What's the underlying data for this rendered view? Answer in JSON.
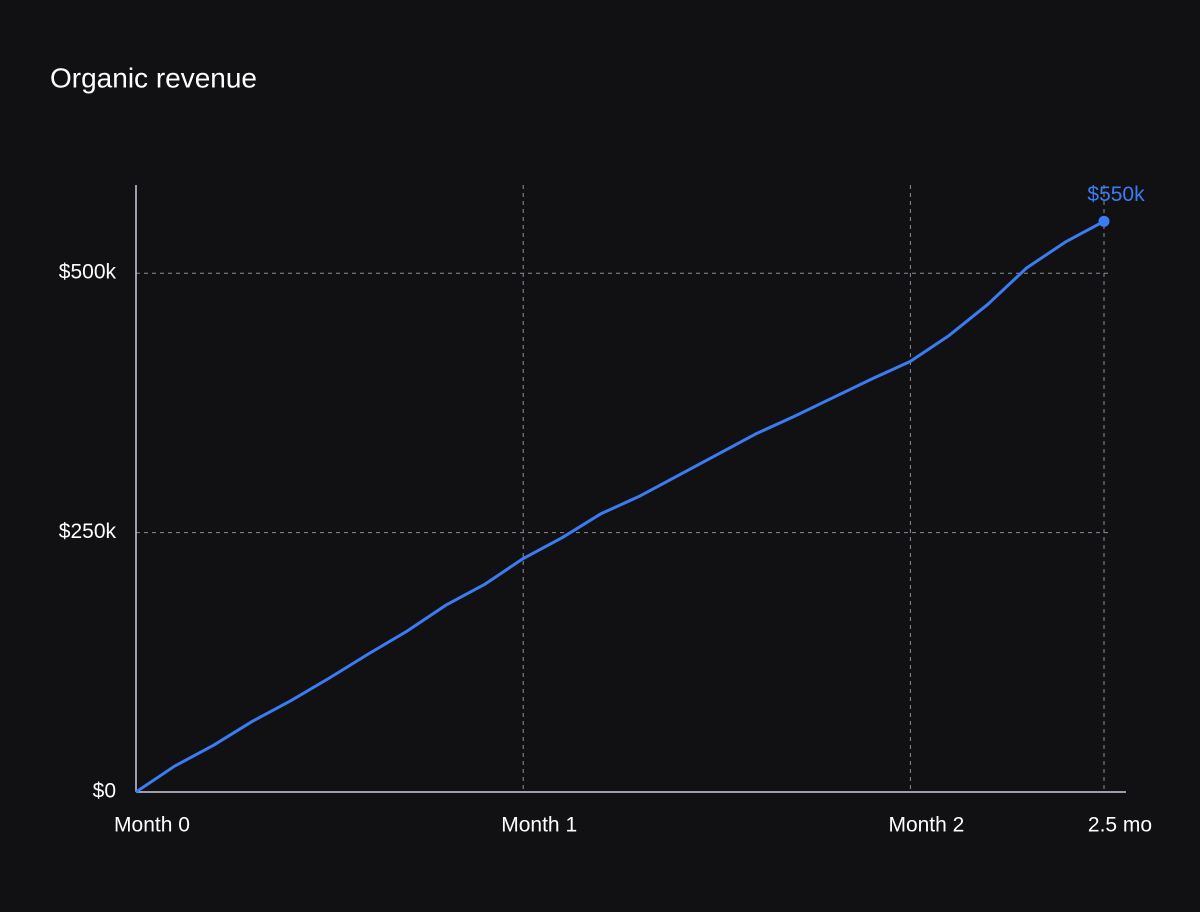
{
  "chart_data": {
    "type": "line",
    "title": "Organic revenue",
    "x": [
      0,
      0.1,
      0.2,
      0.3,
      0.4,
      0.5,
      0.6,
      0.7,
      0.8,
      0.9,
      1.0,
      1.1,
      1.2,
      1.3,
      1.4,
      1.5,
      1.6,
      1.7,
      1.8,
      1.9,
      2.0,
      2.1,
      2.2,
      2.3,
      2.4,
      2.5
    ],
    "series": [
      {
        "name": "Organic revenue",
        "color": "#3b7cf2",
        "values": [
          0,
          25000,
          45000,
          68000,
          88000,
          110000,
          133000,
          155000,
          180000,
          200000,
          225000,
          245000,
          268000,
          285000,
          305000,
          325000,
          345000,
          362000,
          380000,
          398000,
          415000,
          440000,
          470000,
          505000,
          530000,
          550000
        ]
      }
    ],
    "annotations": [
      {
        "text": "$550k",
        "x": 2.5,
        "y": 550000
      }
    ],
    "xlim": [
      0,
      2.5
    ],
    "xticks": [
      {
        "value": 0,
        "label": "Month 0"
      },
      {
        "value": 1,
        "label": "Month 1"
      },
      {
        "value": 2,
        "label": "Month 2"
      },
      {
        "value": 2.5,
        "label": "2.5 mo"
      }
    ],
    "ylim": [
      0,
      585000
    ],
    "yticks": [
      {
        "value": 0,
        "label": "$0"
      },
      {
        "value": 250000,
        "label": "$250k"
      },
      {
        "value": 500000,
        "label": "$500k"
      }
    ],
    "grid": true
  }
}
